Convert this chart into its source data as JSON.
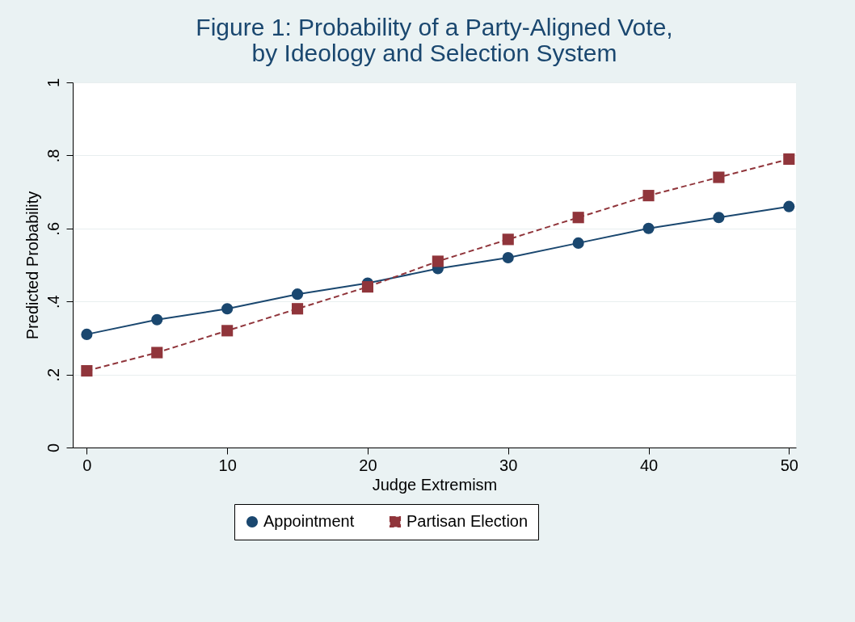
{
  "chart_data": {
    "type": "line",
    "title": [
      "Figure 1: Probability of a Party-Aligned Vote,",
      "by Ideology and Selection System"
    ],
    "xlabel": "Judge Extremism",
    "ylabel": "Predicted Probability",
    "x": [
      0,
      5,
      10,
      15,
      20,
      25,
      30,
      35,
      40,
      45,
      50
    ],
    "series": [
      {
        "name": "Appointment",
        "color": "#1a476f",
        "marker": "circle",
        "line_style": "solid",
        "values": [
          0.31,
          0.35,
          0.38,
          0.42,
          0.45,
          0.49,
          0.52,
          0.56,
          0.6,
          0.63,
          0.66
        ]
      },
      {
        "name": "Partisan Election",
        "color": "#90353b",
        "marker": "square",
        "line_style": "dashed",
        "values": [
          0.21,
          0.26,
          0.32,
          0.38,
          0.44,
          0.51,
          0.57,
          0.63,
          0.69,
          0.74,
          0.79
        ]
      }
    ],
    "xlim": [
      -1,
      50.5
    ],
    "xticks": [
      0,
      10,
      20,
      30,
      40,
      50
    ],
    "ylim": [
      0,
      1
    ],
    "yticks": [
      {
        "value": 0,
        "label": "0"
      },
      {
        "value": 0.2,
        "label": ".2"
      },
      {
        "value": 0.4,
        "label": ".4"
      },
      {
        "value": 0.6,
        "label": ".6"
      },
      {
        "value": 0.8,
        "label": ".8"
      },
      {
        "value": 1,
        "label": "1"
      }
    ],
    "grid": "y",
    "legend": "bottom"
  }
}
